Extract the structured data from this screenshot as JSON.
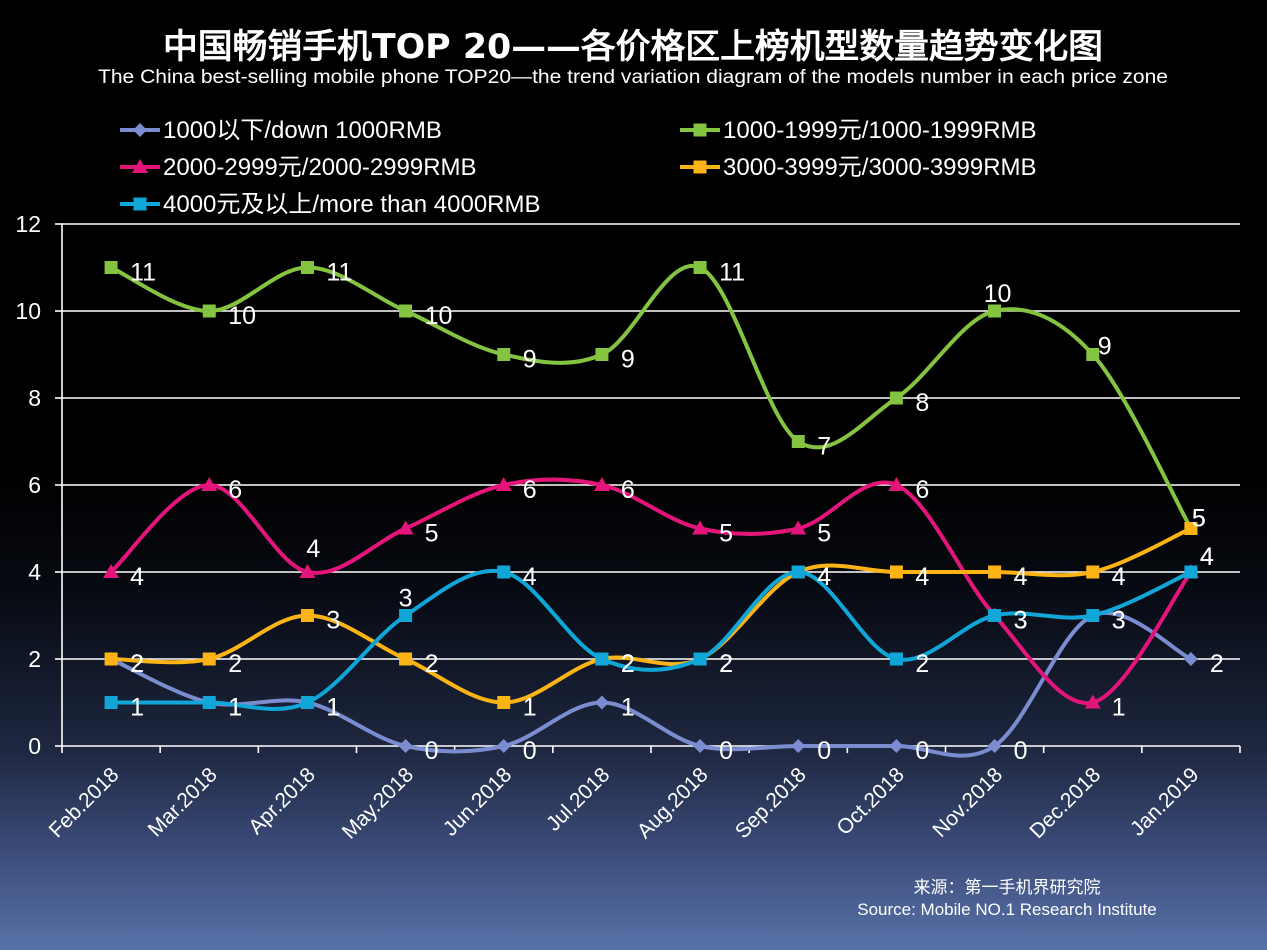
{
  "chart_data": {
    "type": "line",
    "smooth": true,
    "title": "中国畅销手机TOP 20——各价格区上榜机型数量趋势变化图",
    "subtitle": "The China best-selling mobile phone TOP20—the trend variation diagram of the models number in each price zone",
    "categories": [
      "Feb.2018",
      "Mar.2018",
      "Apr.2018",
      "May.2018",
      "Jun.2018",
      "Jul.2018",
      "Aug.2018",
      "Sep.2018",
      "Oct.2018",
      "Nov.2018",
      "Dec.2018",
      "Jan.2019"
    ],
    "ylim": [
      0,
      12
    ],
    "yticks": [
      0,
      2,
      4,
      6,
      8,
      10,
      12
    ],
    "grid": true,
    "legend_position": "top",
    "data_labels": true,
    "series": [
      {
        "name": "1000以下/down 1000RMB",
        "color": "#7b8dd0",
        "marker": "diamond",
        "values": [
          2,
          1,
          1,
          0,
          0,
          1,
          0,
          0,
          0,
          0,
          3,
          2
        ]
      },
      {
        "name": "1000-1999元/1000-1999RMB",
        "color": "#84c441",
        "marker": "square",
        "values": [
          11,
          10,
          11,
          10,
          9,
          9,
          11,
          7,
          8,
          10,
          9,
          5
        ]
      },
      {
        "name": "2000-2999元/2000-2999RMB",
        "color": "#e3157b",
        "marker": "triangle",
        "values": [
          4,
          6,
          4,
          5,
          6,
          6,
          5,
          5,
          6,
          3,
          1,
          4
        ]
      },
      {
        "name": "3000-3999元/3000-3999RMB",
        "color": "#fbb316",
        "marker": "square",
        "values": [
          2,
          2,
          3,
          2,
          1,
          2,
          2,
          4,
          4,
          4,
          4,
          5
        ]
      },
      {
        "name": "4000元及以上/more than 4000RMB",
        "color": "#10a6d8",
        "marker": "square",
        "values": [
          1,
          1,
          1,
          3,
          4,
          2,
          2,
          4,
          2,
          3,
          3,
          4
        ]
      }
    ]
  },
  "source": {
    "cn": "来源：第一手机界研究院",
    "en": "Source: Mobile NO.1 Research Institute"
  }
}
